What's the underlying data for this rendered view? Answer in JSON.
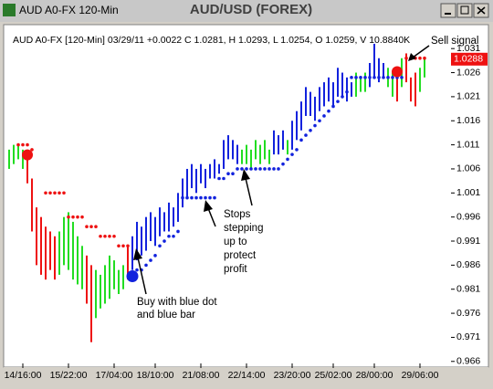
{
  "window_title": "AUD A0-FX 120-Min",
  "chart_data": {
    "type": "ohlc",
    "title": "AUD/USD (FOREX)",
    "info": "AUD A0-FX [120-Min] 03/29/11  +0.0022 C 1.0281, H 1.0293, L 1.0254, O 1.0259, V 10.8840K",
    "annotations": [
      "Sell signal",
      "Buy with blue dot",
      "and blue bar",
      "Stops",
      "stepping",
      "up to",
      "protect",
      "profit"
    ],
    "last_price": 1.0288,
    "last_price_color": "#ee1111",
    "ylim": [
      0.9652,
      1.0354
    ],
    "yticks": [
      1.031,
      1.026,
      1.021,
      1.016,
      1.011,
      1.006,
      1.001,
      0.996,
      0.991,
      0.986,
      0.981,
      0.976,
      0.971,
      0.966
    ],
    "categories": [
      null,
      null,
      null,
      "14/16:00",
      null,
      null,
      null,
      null,
      null,
      null,
      null,
      null,
      null,
      "15/22:00",
      null,
      null,
      null,
      null,
      null,
      null,
      null,
      null,
      null,
      "17/04:00",
      null,
      null,
      null,
      null,
      null,
      null,
      null,
      null,
      "18/10:00",
      null,
      null,
      null,
      null,
      null,
      null,
      null,
      null,
      null,
      "21/08:00",
      null,
      null,
      null,
      null,
      null,
      null,
      null,
      null,
      null,
      "22/14:00",
      null,
      null,
      null,
      null,
      null,
      null,
      null,
      null,
      null,
      "23/20:00",
      null,
      null,
      null,
      null,
      null,
      null,
      null,
      null,
      "25/02:00",
      null,
      null,
      null,
      null,
      null,
      null,
      null,
      null,
      "28/00:00",
      null,
      null,
      null,
      null,
      null,
      null,
      null,
      null,
      null,
      "29/06:00",
      null
    ],
    "high": [
      1.01,
      1.011,
      1.011,
      1.01,
      1.01,
      1.004,
      0.998,
      0.996,
      0.994,
      0.993,
      0.992,
      0.993,
      0.996,
      0.997,
      0.995,
      0.992,
      0.99,
      0.988,
      0.986,
      0.985,
      0.984,
      0.986,
      0.988,
      0.987,
      0.985,
      0.986,
      0.99,
      0.992,
      0.995,
      0.994,
      0.996,
      0.997,
      0.996,
      0.998,
      0.997,
      0.999,
      0.998,
      1.001,
      1.004,
      1.006,
      1.007,
      1.006,
      1.007,
      1.006,
      1.007,
      1.008,
      1.007,
      1.012,
      1.013,
      1.012,
      1.011,
      1.01,
      1.011,
      1.01,
      1.012,
      1.011,
      1.012,
      1.01,
      1.014,
      1.013,
      1.014,
      1.012,
      1.016,
      1.018,
      1.02,
      1.023,
      1.022,
      1.021,
      1.023,
      1.024,
      1.025,
      1.024,
      1.027,
      1.026,
      1.025,
      1.024,
      1.026,
      1.025,
      1.026,
      1.028,
      1.032,
      1.029,
      1.028,
      1.027,
      1.026,
      1.027,
      1.029,
      1.03,
      1.025,
      1.026,
      1.027,
      1.029
    ],
    "low": [
      1.006,
      1.007,
      1.008,
      1.006,
      1.003,
      0.993,
      0.986,
      0.984,
      0.983,
      0.985,
      0.983,
      0.984,
      0.986,
      0.985,
      0.983,
      0.982,
      0.981,
      0.978,
      0.97,
      0.975,
      0.977,
      0.978,
      0.979,
      0.981,
      0.98,
      0.981,
      0.983,
      0.985,
      0.987,
      0.988,
      0.989,
      0.991,
      0.99,
      0.992,
      0.993,
      0.993,
      0.994,
      0.995,
      0.998,
      1.0,
      1.002,
      1.001,
      1.003,
      1.002,
      1.004,
      1.004,
      1.005,
      1.006,
      1.008,
      1.008,
      1.007,
      1.007,
      1.007,
      1.006,
      1.008,
      1.007,
      1.008,
      1.007,
      1.009,
      1.009,
      1.01,
      1.009,
      1.01,
      1.012,
      1.014,
      1.017,
      1.017,
      1.016,
      1.018,
      1.019,
      1.02,
      1.019,
      1.021,
      1.021,
      1.02,
      1.021,
      1.021,
      1.022,
      1.022,
      1.023,
      1.025,
      1.024,
      1.025,
      1.023,
      1.021,
      1.02,
      1.023,
      1.024,
      1.02,
      1.019,
      1.022,
      1.025
    ],
    "bar_colors": [
      "#22dd22",
      "#22dd22",
      "#22dd22",
      "#22dd22",
      "#ee1111",
      "#ee1111",
      "#ee1111",
      "#ee1111",
      "#ee1111",
      "#ee1111",
      "#ee1111",
      "#22dd22",
      "#22dd22",
      "#22dd22",
      "#22dd22",
      "#22dd22",
      "#22dd22",
      "#ee1111",
      "#ee1111",
      "#22dd22",
      "#22dd22",
      "#22dd22",
      "#22dd22",
      "#22dd22",
      "#22dd22",
      "#22dd22",
      "#ee1111",
      "#1122dd",
      "#1122dd",
      "#1122dd",
      "#1122dd",
      "#1122dd",
      "#1122dd",
      "#1122dd",
      "#1122dd",
      "#1122dd",
      "#1122dd",
      "#1122dd",
      "#1122dd",
      "#1122dd",
      "#1122dd",
      "#1122dd",
      "#1122dd",
      "#1122dd",
      "#1122dd",
      "#1122dd",
      "#1122dd",
      "#1122dd",
      "#1122dd",
      "#1122dd",
      "#1122dd",
      "#22dd22",
      "#22dd22",
      "#22dd22",
      "#22dd22",
      "#22dd22",
      "#22dd22",
      "#22dd22",
      "#1122dd",
      "#1122dd",
      "#1122dd",
      "#22dd22",
      "#1122dd",
      "#1122dd",
      "#1122dd",
      "#1122dd",
      "#1122dd",
      "#1122dd",
      "#1122dd",
      "#1122dd",
      "#1122dd",
      "#1122dd",
      "#1122dd",
      "#1122dd",
      "#1122dd",
      "#1122dd",
      "#22dd22",
      "#22dd22",
      "#22dd22",
      "#1122dd",
      "#1122dd",
      "#1122dd",
      "#1122dd",
      "#22dd22",
      "#22dd22",
      "#ee1111",
      "#22dd22",
      "#ee1111",
      "#ee1111",
      "#ee1111",
      "#22dd22",
      "#22dd22"
    ],
    "sell_stops": [
      null,
      null,
      1.011,
      1.011,
      1.011,
      1.01,
      null,
      null,
      1.001,
      1.001,
      1.001,
      1.001,
      1.001,
      0.996,
      0.996,
      0.996,
      0.996,
      0.994,
      0.994,
      0.994,
      0.992,
      0.992,
      0.992,
      0.992,
      0.99,
      0.99,
      0.99,
      null,
      null,
      null,
      null,
      null,
      null,
      null,
      null,
      null,
      null,
      null,
      null,
      null,
      null,
      null,
      null,
      null,
      null,
      null,
      null,
      null,
      null,
      null,
      null,
      null,
      null,
      null,
      null,
      null,
      null,
      null,
      null,
      null,
      null,
      null,
      null,
      null,
      null,
      null,
      null,
      null,
      null,
      null,
      null,
      null,
      null,
      null,
      null,
      null,
      null,
      null,
      null,
      null,
      null,
      null,
      null,
      null,
      null,
      null,
      null,
      1.029,
      1.029,
      1.029,
      1.029,
      1.029
    ],
    "buy_stops": [
      null,
      null,
      null,
      null,
      null,
      null,
      null,
      null,
      null,
      null,
      null,
      null,
      null,
      null,
      null,
      null,
      null,
      null,
      null,
      null,
      null,
      null,
      null,
      null,
      null,
      null,
      null,
      null,
      0.985,
      0.985,
      0.986,
      0.987,
      0.988,
      0.99,
      0.991,
      0.992,
      0.992,
      0.993,
      1.0,
      1.0,
      1.0,
      1.0,
      1.0,
      1.0,
      1.0,
      1.0,
      1.004,
      1.004,
      1.005,
      1.005,
      1.006,
      1.006,
      1.006,
      1.006,
      1.006,
      1.006,
      1.006,
      1.006,
      1.006,
      1.006,
      1.007,
      1.008,
      1.009,
      1.01,
      1.012,
      1.013,
      1.014,
      1.015,
      1.016,
      1.017,
      1.018,
      1.019,
      1.02,
      1.021,
      1.022,
      1.025,
      1.025,
      1.025,
      1.025,
      1.025,
      1.025,
      1.025,
      1.025,
      1.025,
      1.025,
      1.025,
      1.025,
      null,
      null,
      null,
      null,
      null
    ],
    "sell_color": "#ee1111",
    "buy_color": "#1122dd",
    "sell_signals": [
      null,
      null,
      null,
      null,
      1.0089,
      null,
      null,
      null,
      null,
      null,
      null,
      null,
      null,
      null,
      null,
      null,
      null,
      null,
      null,
      null,
      null,
      null,
      null,
      null,
      null,
      null,
      null,
      null,
      null,
      null,
      null,
      null,
      null,
      null,
      null,
      null,
      null,
      null,
      null,
      null,
      null,
      null,
      null,
      null,
      null,
      null,
      null,
      null,
      null,
      null,
      null,
      null,
      null,
      null,
      null,
      null,
      null,
      null,
      null,
      null,
      null,
      null,
      null,
      null,
      null,
      null,
      null,
      null,
      null,
      null,
      null,
      null,
      null,
      null,
      null,
      null,
      null,
      null,
      null,
      null,
      null,
      null,
      null,
      null,
      null,
      1.0262,
      null,
      null,
      null,
      null,
      null,
      null
    ],
    "buy_signals": [
      null,
      null,
      null,
      null,
      null,
      null,
      null,
      null,
      null,
      null,
      null,
      null,
      null,
      null,
      null,
      null,
      null,
      null,
      null,
      null,
      null,
      null,
      null,
      null,
      null,
      null,
      null,
      0.9837,
      null,
      null,
      null,
      null,
      null,
      null,
      null,
      null,
      null,
      null,
      null,
      null,
      null,
      null,
      null,
      null,
      null,
      null,
      null,
      null,
      null,
      null,
      null,
      null,
      null,
      null,
      null,
      null,
      null,
      null,
      null,
      null,
      null,
      null,
      null,
      null,
      null,
      null,
      null,
      null,
      null,
      null,
      null,
      null,
      null,
      null,
      null,
      null,
      null,
      null,
      null,
      null,
      null,
      null,
      null,
      null,
      null,
      null,
      null,
      null,
      null,
      null,
      null,
      null
    ]
  }
}
